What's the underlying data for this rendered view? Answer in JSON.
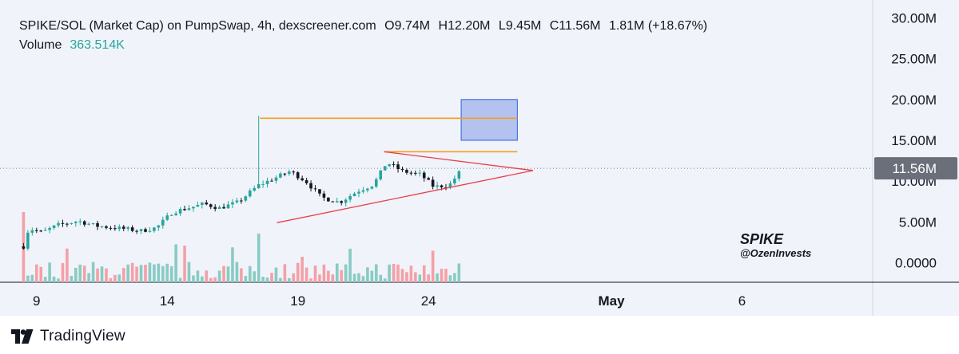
{
  "legend": {
    "title": "SPIKE/SOL (Market Cap) on PumpSwap, 4h, dexscreener.com",
    "open": "O9.74M",
    "high": "H12.20M",
    "low": "L9.45M",
    "close": "C11.56M",
    "change": "1.81M (+18.67%)",
    "volume_label": "Volume",
    "volume_value": "363.514K"
  },
  "watermark": {
    "name": "SPIKE",
    "handle": "@OzenInvests"
  },
  "footer": {
    "brand": "TradingView"
  },
  "colors": {
    "up": "#26a69a",
    "down": "#131722",
    "vol_up": "#89cbc3",
    "vol_down": "#f4a0a6",
    "resistance": "#f59e1b",
    "triangle": "#e8404a",
    "target_fill": "#a8b8ec",
    "target_stroke": "#2f5fe0"
  },
  "chart_data": {
    "type": "candlestick",
    "timeframe": "4h",
    "yunit": "M",
    "ylim": [
      -2.4,
      32.2
    ],
    "yticks": [
      0,
      5,
      10,
      15,
      20,
      25,
      30
    ],
    "ytick_labels": [
      "0.0000",
      "5.00M",
      "10.00M",
      "15.00M",
      "20.00M",
      "25.00M",
      "30.00M"
    ],
    "xlim_days": [
      7.6,
      41.0
    ],
    "xticks": [
      {
        "day": 9,
        "label": "9"
      },
      {
        "day": 14,
        "label": "14"
      },
      {
        "day": 19,
        "label": "19"
      },
      {
        "day": 24,
        "label": "24"
      },
      {
        "day": 31,
        "label": "May"
      },
      {
        "day": 36,
        "label": "6"
      }
    ],
    "last_price": {
      "value": 11.56,
      "label": "11.56M"
    },
    "price_path": [
      [
        8.5,
        2.0
      ],
      [
        8.7,
        4.2
      ],
      [
        9.2,
        3.7
      ],
      [
        9.8,
        4.6
      ],
      [
        10.6,
        5.1
      ],
      [
        11.3,
        4.5
      ],
      [
        12.2,
        4.2
      ],
      [
        13.0,
        3.9
      ],
      [
        13.6,
        4.3
      ],
      [
        14.2,
        6.2
      ],
      [
        14.8,
        6.7
      ],
      [
        15.4,
        7.2
      ],
      [
        16.0,
        6.7
      ],
      [
        16.7,
        7.4
      ],
      [
        17.5,
        9.5
      ],
      [
        18.0,
        10.2
      ],
      [
        18.7,
        11.2
      ],
      [
        19.3,
        10.0
      ],
      [
        19.9,
        8.0
      ],
      [
        20.6,
        7.4
      ],
      [
        21.3,
        8.8
      ],
      [
        21.9,
        9.6
      ],
      [
        22.4,
        12.3
      ],
      [
        23.0,
        11.2
      ],
      [
        23.7,
        10.8
      ],
      [
        24.2,
        9.3
      ],
      [
        24.8,
        9.5
      ],
      [
        25.3,
        11.56
      ]
    ],
    "spike": {
      "day": 17.5,
      "high": 18.0
    },
    "resistance_lines": [
      {
        "y": 17.7,
        "x": [
          17.55,
          27.4
        ]
      },
      {
        "y": 13.6,
        "x": [
          22.3,
          27.4
        ]
      }
    ],
    "target_zone": {
      "x": [
        25.25,
        27.4
      ],
      "y": [
        15.0,
        20.0
      ]
    },
    "triangle": {
      "upper": [
        [
          22.3,
          13.6
        ],
        [
          28.0,
          11.3
        ]
      ],
      "lower": [
        [
          18.2,
          4.9
        ],
        [
          28.0,
          11.3
        ]
      ]
    },
    "volume_max_m": 12.7
  }
}
